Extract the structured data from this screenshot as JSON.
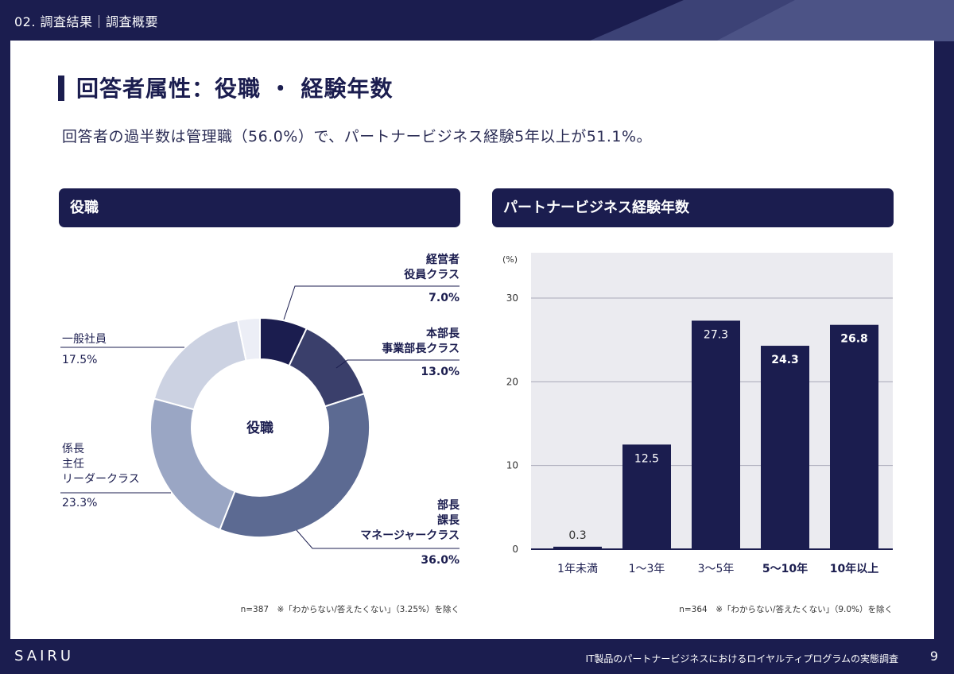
{
  "header": {
    "breadcrumb": "02. 調査結果｜調査概要"
  },
  "page": {
    "title": "回答者属性：役職 ・ 経験年数",
    "subtitle": "回答者の過半数は管理職（56.0%）で、パートナービジネス経験5年以上が51.1%。"
  },
  "colors": {
    "navy": "#1b1d4f",
    "accent": "#4b5a87"
  },
  "chart_data": [
    {
      "type": "pie",
      "title": "役職",
      "center_label": "役職",
      "slices": [
        {
          "label": [
            "経営者",
            "役員クラス"
          ],
          "value": 7.0,
          "value_label": "7.0%",
          "color": "#1b1d4f"
        },
        {
          "label": [
            "本部長",
            "事業部長クラス"
          ],
          "value": 13.0,
          "value_label": "13.0%",
          "color": "#3a3f6b"
        },
        {
          "label": [
            "部長",
            "課長",
            "マネージャークラス"
          ],
          "value": 36.0,
          "value_label": "36.0%",
          "color": "#5c6a92"
        },
        {
          "label": [
            "係長",
            "主任",
            "リーダークラス"
          ],
          "value": 23.3,
          "value_label": "23.3%",
          "color": "#9aa6c4"
        },
        {
          "label": [
            "一般社員"
          ],
          "value": 17.5,
          "value_label": "17.5%",
          "color": "#ccd2e2"
        },
        {
          "label": [],
          "value": 3.25,
          "value_label": "",
          "color": "#eceef6"
        }
      ],
      "note": "n=387　※「わからない/答えたくない」（3.25%）を除く"
    },
    {
      "type": "bar",
      "title": "パートナービジネス経験年数",
      "categories": [
        "1年未満",
        "1〜3年",
        "3〜5年",
        "5〜10年",
        "10年以上"
      ],
      "values": [
        0.3,
        12.5,
        27.3,
        24.3,
        26.8
      ],
      "value_labels": [
        "0.3",
        "12.5",
        "27.3",
        "24.3",
        "26.8"
      ],
      "bold_categories": [
        false,
        false,
        false,
        true,
        true
      ],
      "ylabel": "(%)",
      "ylim": [
        0,
        30
      ],
      "yticks": [
        0,
        10,
        20,
        30
      ],
      "grid": true,
      "note": "n=364　※「わからない/答えたくない」（9.0%）を除く"
    }
  ],
  "footer": {
    "logo": "SAIRU",
    "report_title": "IT製品のパートナービジネスにおけるロイヤルティプログラムの実態調査",
    "page_number": "9"
  }
}
